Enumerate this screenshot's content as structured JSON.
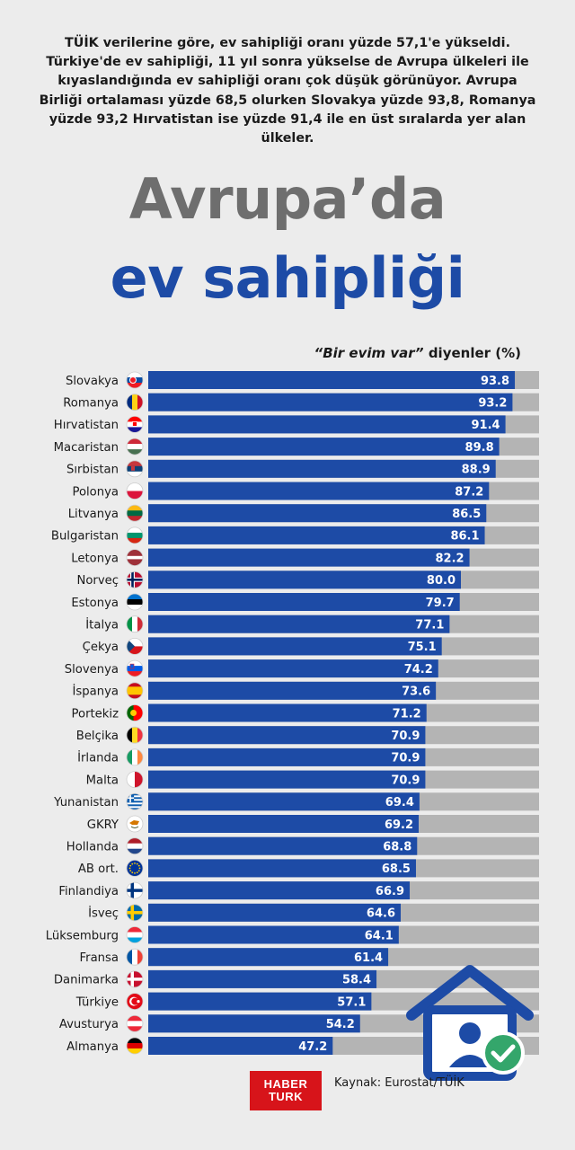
{
  "intro_text": "TÜİK verilerine göre, ev sahipliği oranı yüzde 57,1'e yükseldi. Türkiye'de ev sahipliği, 11 yıl sonra yükselse de Avrupa ülkeleri ile kıyaslandığında ev sahipliği oranı çok düşük görünüyor. Avrupa Birliği ortalaması yüzde 68,5 olurken Slovakya yüzde 93,8, Romanya yüzde 93,2 Hırvatistan ise yüzde 91,4 ile en üst sıralarda yer alan ülkeler.",
  "title_line1": "Avrupa’da",
  "title_line2": "ev sahipliği",
  "unit_label_quote": "“Bir evim var”",
  "unit_label_rest": " diyenler (%)",
  "source": "Kaynak: Eurostat/TÜİK",
  "logo_line1": "HABER",
  "logo_line2": "TURK",
  "colors": {
    "bar": "#1d4ba6",
    "track": "#b4b4b4",
    "accent_grey": "#6e6e6e",
    "check": "#34a66b"
  },
  "chart_data": {
    "type": "bar",
    "orientation": "horizontal",
    "ylim": [
      0,
      100
    ],
    "categories": [
      "Slovakya",
      "Romanya",
      "Hırvatistan",
      "Macaristan",
      "Sırbistan",
      "Polonya",
      "Litvanya",
      "Bulgaristan",
      "Letonya",
      "Norveç",
      "Estonya",
      "İtalya",
      "Çekya",
      "Slovenya",
      "İspanya",
      "Portekiz",
      "Belçika",
      "İrlanda",
      "Malta",
      "Yunanistan",
      "GKRY",
      "Hollanda",
      "AB ort.",
      "Finlandiya",
      "İsveç",
      "Lüksemburg",
      "Fransa",
      "Danimarka",
      "Türkiye",
      "Avusturya",
      "Almanya"
    ],
    "values": [
      93.8,
      93.2,
      91.4,
      89.8,
      88.9,
      87.2,
      86.5,
      86.1,
      82.2,
      80.0,
      79.7,
      77.1,
      75.1,
      74.2,
      73.6,
      71.2,
      70.9,
      70.9,
      70.9,
      69.4,
      69.2,
      68.8,
      68.5,
      66.9,
      64.6,
      64.1,
      61.4,
      58.4,
      57.1,
      54.2,
      47.2
    ],
    "value_labels": [
      "93.8",
      "93.2",
      "91.4",
      "89.8",
      "88.9",
      "87.2",
      "86.5",
      "86.1",
      "82.2",
      "80.0",
      "79.7",
      "77.1",
      "75.1",
      "74.2",
      "73.6",
      "71.2",
      "70.9",
      "70.9",
      "70.9",
      "69.4",
      "69.2",
      "68.8",
      "68.5",
      "66.9",
      "64.6",
      "64.1",
      "61.4",
      "58.4",
      "57.1",
      "54.2",
      "47.2"
    ],
    "flag_icons": [
      "slovakia-flag-icon",
      "romania-flag-icon",
      "croatia-flag-icon",
      "hungary-flag-icon",
      "serbia-flag-icon",
      "poland-flag-icon",
      "lithuania-flag-icon",
      "bulgaria-flag-icon",
      "latvia-flag-icon",
      "norway-flag-icon",
      "estonia-flag-icon",
      "italy-flag-icon",
      "czechia-flag-icon",
      "slovenia-flag-icon",
      "spain-flag-icon",
      "portugal-flag-icon",
      "belgium-flag-icon",
      "ireland-flag-icon",
      "malta-flag-icon",
      "greece-flag-icon",
      "cyprus-flag-icon",
      "netherlands-flag-icon",
      "eu-flag-icon",
      "finland-flag-icon",
      "sweden-flag-icon",
      "luxembourg-flag-icon",
      "france-flag-icon",
      "denmark-flag-icon",
      "turkey-flag-icon",
      "austria-flag-icon",
      "germany-flag-icon"
    ]
  }
}
